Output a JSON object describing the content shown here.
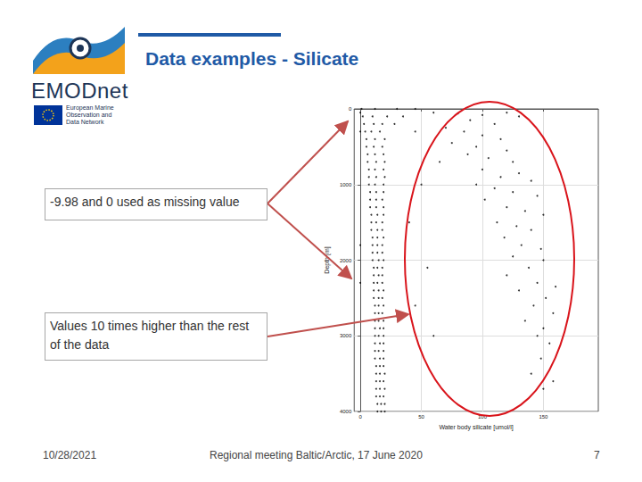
{
  "slide": {
    "title": "Data examples - Silicate",
    "logo_text": "EMODnet",
    "logo_subtitle": [
      "European Marine",
      "Observation and",
      "Data Network"
    ],
    "date": "10/28/2021",
    "footer": "Regional meeting Baltic/Arctic, 17 June 2020",
    "page": 7
  },
  "annotations": [
    "-9.98 and 0 used as missing value",
    "Values 10 times higher than the rest of the data"
  ],
  "chart_data": {
    "type": "scatter",
    "x_label": "Water body silicate [umol/l]",
    "y_label": "Depth [m]",
    "color": "#000000",
    "marker": "circle",
    "grid": true,
    "xlim": [
      -5,
      195
    ],
    "xticks": [
      0,
      50,
      100,
      150
    ],
    "ylim": [
      4000,
      0
    ],
    "yticks": [
      0,
      1000,
      2000,
      3000,
      4000
    ],
    "x": [
      1,
      12,
      30,
      45,
      2,
      10,
      22,
      35,
      3,
      11,
      18,
      28,
      4,
      9,
      16,
      5,
      12,
      20,
      5,
      11,
      18,
      6,
      12,
      19,
      6,
      13,
      20,
      7,
      12,
      19,
      7,
      13,
      20,
      7,
      12,
      19,
      8,
      13,
      19,
      8,
      13,
      18,
      8,
      13,
      19,
      9,
      14,
      19,
      9,
      13,
      18,
      9,
      14,
      18,
      10,
      14,
      19,
      10,
      14,
      18,
      10,
      14,
      18,
      10,
      15,
      19,
      11,
      14,
      18,
      11,
      15,
      18,
      11,
      14,
      18,
      11,
      15,
      19,
      11,
      15,
      18,
      12,
      15,
      19,
      12,
      15,
      18,
      12,
      15,
      19,
      12,
      16,
      19,
      12,
      15,
      19,
      12,
      16,
      19,
      12,
      15,
      19,
      12,
      16,
      19,
      13,
      16,
      19,
      13,
      16,
      20,
      13,
      16,
      19,
      13,
      16,
      20,
      13,
      16,
      19,
      14,
      17,
      20,
      14,
      17,
      20,
      0,
      0,
      0,
      0,
      60,
      80,
      100,
      120,
      130,
      90,
      110,
      70,
      85,
      100,
      115,
      75,
      95,
      120,
      88,
      105,
      125,
      100,
      130,
      115,
      140,
      95,
      110,
      125,
      145,
      102,
      120,
      135,
      150,
      112,
      128,
      140,
      118,
      132,
      148,
      125,
      150,
      138,
      120,
      145,
      160,
      130,
      152,
      142,
      158,
      135,
      150,
      145,
      155,
      148,
      140,
      158,
      150,
      50,
      40,
      55,
      45,
      60,
      65,
      45
    ],
    "values": [
      0,
      0,
      0,
      0,
      100,
      100,
      100,
      100,
      200,
      200,
      200,
      200,
      300,
      300,
      300,
      400,
      400,
      400,
      500,
      500,
      500,
      600,
      600,
      600,
      700,
      700,
      700,
      800,
      800,
      800,
      900,
      900,
      900,
      1000,
      1000,
      1000,
      1100,
      1100,
      1100,
      1200,
      1200,
      1200,
      1300,
      1300,
      1300,
      1400,
      1400,
      1400,
      1500,
      1500,
      1500,
      1600,
      1600,
      1600,
      1700,
      1700,
      1700,
      1800,
      1800,
      1800,
      1900,
      1900,
      1900,
      2000,
      2000,
      2000,
      2100,
      2100,
      2100,
      2200,
      2200,
      2200,
      2300,
      2300,
      2300,
      2400,
      2400,
      2400,
      2500,
      2500,
      2500,
      2600,
      2600,
      2600,
      2700,
      2700,
      2700,
      2800,
      2800,
      2800,
      2900,
      2900,
      2900,
      3000,
      3000,
      3000,
      3100,
      3100,
      3100,
      3200,
      3200,
      3200,
      3300,
      3300,
      3300,
      3400,
      3400,
      3400,
      3500,
      3500,
      3500,
      3600,
      3600,
      3600,
      3700,
      3700,
      3700,
      3800,
      3800,
      3800,
      3900,
      3900,
      3900,
      4000,
      4000,
      4000,
      50,
      300,
      1800,
      2300,
      50,
      60,
      80,
      50,
      100,
      150,
      200,
      250,
      300,
      350,
      400,
      450,
      500,
      550,
      600,
      650,
      700,
      800,
      850,
      900,
      950,
      1000,
      1050,
      1100,
      1150,
      1200,
      1300,
      1350,
      1400,
      1500,
      1550,
      1600,
      1700,
      1800,
      1850,
      1950,
      2000,
      2100,
      2200,
      2300,
      2350,
      2400,
      2500,
      2600,
      2700,
      2800,
      2900,
      3000,
      3100,
      3300,
      3500,
      3600,
      3700,
      1000,
      1500,
      2100,
      2600,
      3000,
      700,
      300
    ]
  }
}
